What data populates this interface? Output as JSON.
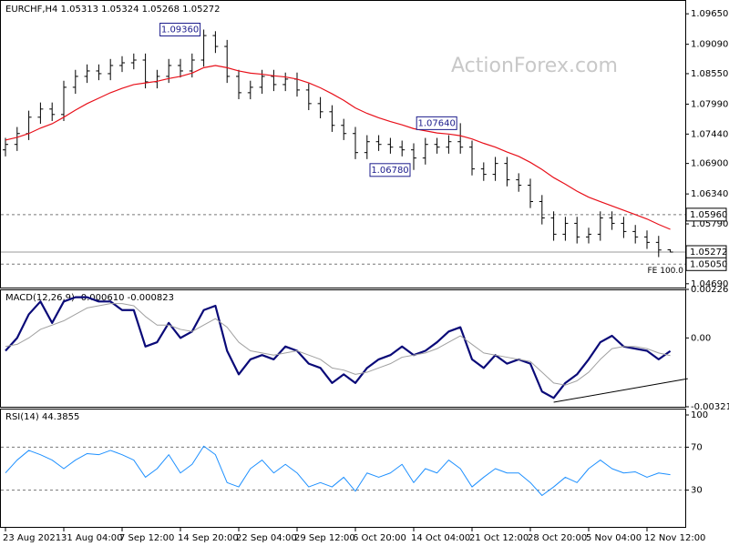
{
  "chart_data": [
    {
      "type": "ohlc",
      "title": "EURCHF,H4 1.05313 1.05324 1.05268 1.05272",
      "watermark": "ActionForex.com",
      "categories": [
        "23 Aug 2021",
        null,
        null,
        null,
        null,
        "31 Aug 04:00",
        null,
        null,
        null,
        null,
        "7 Sep 12:00",
        null,
        null,
        null,
        null,
        "14 Sep 20:00",
        null,
        null,
        null,
        null,
        "22 Sep 04:00",
        null,
        null,
        null,
        null,
        "29 Sep 12:00",
        null,
        null,
        null,
        null,
        "6 Oct 20:00",
        null,
        null,
        null,
        null,
        "14 Oct 04:00",
        null,
        null,
        null,
        null,
        "21 Oct 12:00",
        null,
        null,
        null,
        null,
        "28 Oct 20:00",
        null,
        null,
        null,
        null,
        "5 Nov 04:00",
        null,
        null,
        null,
        null,
        "12 Nov 12:00",
        null,
        null
      ],
      "open": [
        1.0715,
        1.0725,
        1.0745,
        1.0775,
        1.079,
        1.078,
        1.083,
        1.085,
        1.086,
        1.0855,
        1.087,
        1.0875,
        1.088,
        1.084,
        1.085,
        1.087,
        1.086,
        1.088,
        1.0925,
        1.0905,
        1.085,
        1.082,
        1.083,
        1.085,
        1.0835,
        1.0845,
        1.0825,
        1.08,
        1.0785,
        1.076,
        1.0745,
        1.071,
        1.073,
        1.0725,
        1.072,
        1.0715,
        1.07,
        1.0725,
        1.072,
        1.073,
        1.072,
        1.068,
        1.067,
        1.069,
        1.066,
        1.065,
        1.062,
        1.059,
        1.056,
        1.058,
        1.0555,
        1.056,
        1.059,
        1.058,
        1.0565,
        1.0555,
        1.0545,
        1.05313
      ],
      "high": [
        1.0737,
        1.0757,
        1.0787,
        1.0802,
        1.0802,
        1.0842,
        1.0862,
        1.0872,
        1.0872,
        1.0882,
        1.0887,
        1.0892,
        1.0892,
        1.0862,
        1.0882,
        1.0882,
        1.0892,
        1.0936,
        1.0933,
        1.0917,
        1.0862,
        1.0842,
        1.0862,
        1.0862,
        1.0857,
        1.0857,
        1.0837,
        1.0812,
        1.0797,
        1.0772,
        1.0757,
        1.0742,
        1.0742,
        1.0737,
        1.0732,
        1.0727,
        1.0737,
        1.0737,
        1.0742,
        1.0764,
        1.0732,
        1.0692,
        1.0702,
        1.0702,
        1.0672,
        1.0662,
        1.0632,
        1.0602,
        1.0592,
        1.0592,
        1.0572,
        1.0602,
        1.0602,
        1.0592,
        1.0577,
        1.0567,
        1.0557,
        1.05324
      ],
      "low": [
        1.0703,
        1.0713,
        1.0733,
        1.0763,
        1.0768,
        1.0768,
        1.0818,
        1.0838,
        1.0843,
        1.0843,
        1.0858,
        1.0863,
        1.0828,
        1.0828,
        1.0838,
        1.0848,
        1.0848,
        1.0868,
        1.0893,
        1.0838,
        1.0808,
        1.0808,
        1.0818,
        1.0823,
        1.0823,
        1.0813,
        1.0788,
        1.0773,
        1.0748,
        1.0733,
        1.0698,
        1.0698,
        1.0713,
        1.0708,
        1.0703,
        1.0678,
        1.0688,
        1.0708,
        1.0708,
        1.0708,
        1.0668,
        1.0658,
        1.0658,
        1.0648,
        1.0638,
        1.0608,
        1.0578,
        1.0548,
        1.0548,
        1.0543,
        1.0543,
        1.0548,
        1.0568,
        1.0553,
        1.0543,
        1.0533,
        1.0518,
        1.05268
      ],
      "close": [
        1.0725,
        1.0745,
        1.0775,
        1.079,
        1.078,
        1.083,
        1.085,
        1.086,
        1.0855,
        1.087,
        1.0875,
        1.088,
        1.084,
        1.085,
        1.087,
        1.086,
        1.088,
        1.0925,
        1.0905,
        1.085,
        1.082,
        1.083,
        1.085,
        1.0835,
        1.0845,
        1.0825,
        1.08,
        1.0785,
        1.076,
        1.0745,
        1.071,
        1.073,
        1.0725,
        1.072,
        1.0715,
        1.07,
        1.0725,
        1.072,
        1.073,
        1.072,
        1.068,
        1.067,
        1.069,
        1.066,
        1.065,
        1.062,
        1.059,
        1.056,
        1.058,
        1.0555,
        1.056,
        1.059,
        1.058,
        1.0565,
        1.0555,
        1.0545,
        1.0531,
        1.05272
      ],
      "color": "#000000",
      "ma": {
        "color": "#e8101a",
        "values": [
          1.0733,
          1.0738,
          1.0745,
          1.0755,
          1.0763,
          1.0775,
          1.0788,
          1.08,
          1.081,
          1.082,
          1.0828,
          1.0835,
          1.0838,
          1.0841,
          1.0846,
          1.085,
          1.0856,
          1.0866,
          1.087,
          1.0866,
          1.086,
          1.0856,
          1.0854,
          1.0851,
          1.0849,
          1.0845,
          1.0838,
          1.0829,
          1.0818,
          1.0806,
          1.0792,
          1.0782,
          1.0774,
          1.0767,
          1.0761,
          1.0754,
          1.075,
          1.0746,
          1.0744,
          1.0741,
          1.0735,
          1.0727,
          1.072,
          1.0711,
          1.0703,
          1.0692,
          1.0679,
          1.0664,
          1.0652,
          1.0639,
          1.0628,
          1.062,
          1.0612,
          1.0604,
          1.0596,
          1.0588,
          1.0578,
          1.0569
        ]
      },
      "ylim": [
        1.0462,
        1.0987
      ],
      "yticks": [
        {
          "value": 1.0965,
          "label": "1.09650"
        },
        {
          "value": 1.0909,
          "label": "1.09090"
        },
        {
          "value": 1.0855,
          "label": "1.08550"
        },
        {
          "value": 1.0799,
          "label": "1.07990"
        },
        {
          "value": 1.0744,
          "label": "1.07440"
        },
        {
          "value": 1.069,
          "label": "1.06900"
        },
        {
          "value": 1.0634,
          "label": "1.06340"
        },
        {
          "value": 1.0579,
          "label": "1.05790"
        },
        {
          "value": 1.0469,
          "label": "1.04690"
        }
      ],
      "levels": [
        {
          "value": 1.0596,
          "label": "1.05960",
          "style": "dashed"
        },
        {
          "value": 1.05272,
          "label": "1.05272",
          "style": "solid"
        },
        {
          "value": 1.0505,
          "label": "1.05050",
          "style": "dashed",
          "note": "FE 100.0"
        }
      ],
      "annotations": [
        {
          "bar": 17,
          "value": 1.0936,
          "label": "1.09360"
        },
        {
          "bar": 39,
          "value": 1.0764,
          "label": "1.07640"
        },
        {
          "bar": 35,
          "value": 1.0678,
          "label": "1.06780"
        }
      ]
    },
    {
      "type": "line",
      "title": "MACD(12,26,9) -0.000610 -0.000823",
      "series": [
        {
          "color": "#0a0a78",
          "width": 2.2,
          "values": [
            -0.0006,
            0.0,
            0.0011,
            0.0017,
            0.0007,
            0.0017,
            0.0019,
            0.0019,
            0.0017,
            0.0017,
            0.0013,
            0.0013,
            -0.0004,
            -0.0002,
            0.0007,
            0.0,
            0.0003,
            0.0013,
            0.0015,
            -0.0006,
            -0.0017,
            -0.001,
            -0.0008,
            -0.001,
            -0.0004,
            -0.0006,
            -0.0012,
            -0.0014,
            -0.0021,
            -0.0017,
            -0.0021,
            -0.0014,
            -0.001,
            -0.0008,
            -0.0004,
            -0.0008,
            -0.0006,
            -0.0002,
            0.0003,
            0.0005,
            -0.001,
            -0.0014,
            -0.0008,
            -0.0012,
            -0.001,
            -0.0012,
            -0.0025,
            -0.0028,
            -0.0021,
            -0.0017,
            -0.001,
            -0.0002,
            0.0001,
            -0.0004,
            -0.0005,
            -0.0006,
            -0.001,
            -0.00061
          ]
        },
        {
          "color": "#a0a0a0",
          "width": 1,
          "values": [
            -0.0004,
            -0.0003,
            0.0,
            0.0004,
            0.0006,
            0.0008,
            0.0011,
            0.0014,
            0.0015,
            0.0016,
            0.0016,
            0.0015,
            0.001,
            0.0006,
            0.0006,
            0.0004,
            0.0003,
            0.0006,
            0.0009,
            0.0005,
            -0.0002,
            -0.0006,
            -0.0007,
            -0.0008,
            -0.0007,
            -0.0006,
            -0.0008,
            -0.001,
            -0.0014,
            -0.0015,
            -0.0017,
            -0.0016,
            -0.0014,
            -0.0012,
            -0.0009,
            -0.0008,
            -0.0007,
            -0.0005,
            -0.0002,
            0.0001,
            -0.0003,
            -0.0007,
            -0.0008,
            -0.0009,
            -0.001,
            -0.0011,
            -0.0016,
            -0.0021,
            -0.0022,
            -0.002,
            -0.0016,
            -0.001,
            -0.0005,
            -0.0004,
            -0.0004,
            -0.0005,
            -0.0007,
            -0.000823
          ]
        }
      ],
      "trendline": {
        "x": [
          47,
          58.5
        ],
        "values": [
          -0.003,
          -0.0019
        ]
      },
      "ylim": [
        -0.003211,
        0.002265
      ],
      "yticks": [
        0.002265,
        {
          "value": 0,
          "label": "0.00"
        },
        -0.003211
      ]
    },
    {
      "type": "line",
      "title": "RSI(14) 44.3855",
      "series": [
        {
          "color": "#1e90ff",
          "width": 1,
          "values": [
            46,
            58,
            67,
            63,
            58,
            50,
            58,
            64,
            63,
            67,
            63,
            58,
            42,
            50,
            63,
            46,
            54,
            71,
            63,
            37,
            33,
            50,
            58,
            46,
            54,
            46,
            33,
            37,
            33,
            42,
            29,
            46,
            42,
            46,
            54,
            37,
            50,
            46,
            58,
            50,
            33,
            42,
            50,
            46,
            46,
            37,
            25,
            33,
            42,
            37,
            50,
            58,
            50,
            46,
            47,
            42,
            46,
            44.3855
          ]
        }
      ],
      "levels": [
        {
          "value": 70,
          "style": "dashed"
        },
        {
          "value": 30,
          "style": "dashed"
        }
      ],
      "ylim": [
        0,
        100
      ],
      "yticks": [
        100,
        70,
        30
      ]
    }
  ]
}
